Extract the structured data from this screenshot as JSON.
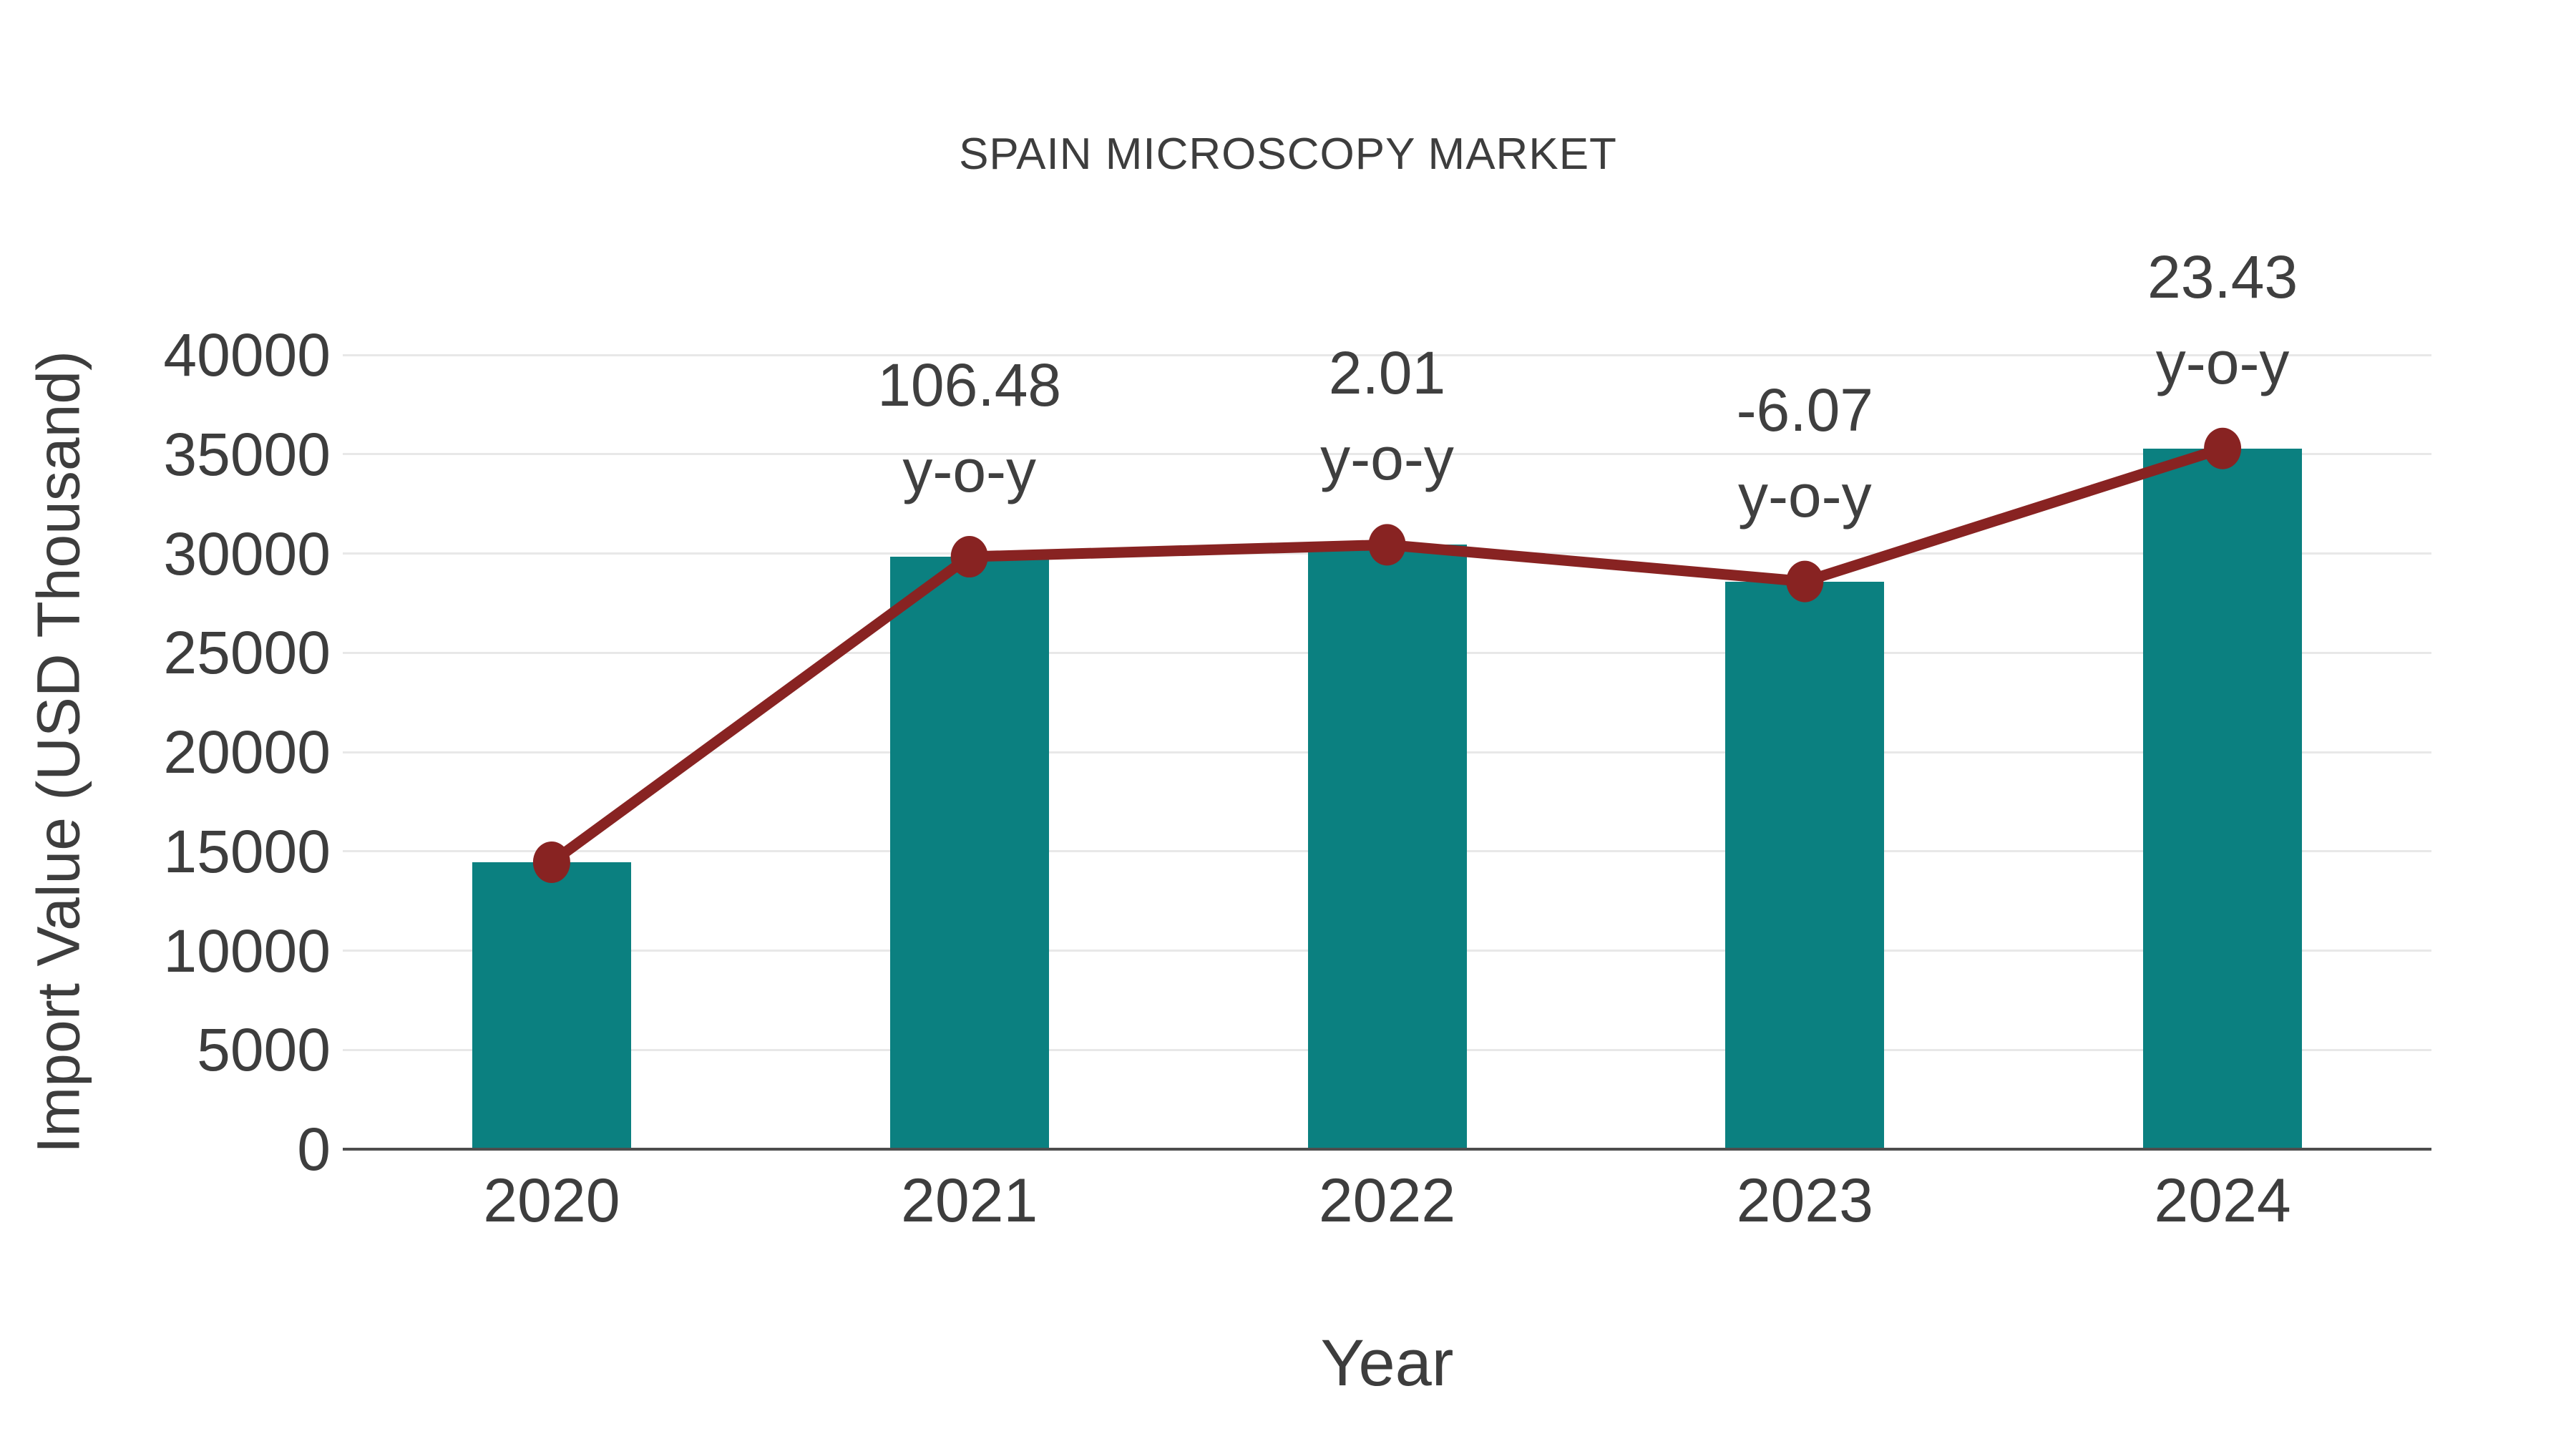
{
  "chart_data": {
    "type": "bar",
    "title": "SPAIN MICROSCOPY MARKET",
    "xlabel": "Year",
    "ylabel": "Import Value (USD Thousand)",
    "categories": [
      "2020",
      "2021",
      "2022",
      "2023",
      "2024"
    ],
    "series": [
      {
        "name": "import-value-bars",
        "type": "bar",
        "values": [
          14450,
          29837,
          30437,
          28590,
          35289
        ],
        "color": "#0b8080"
      },
      {
        "name": "import-value-trend-line",
        "type": "line",
        "values": [
          14450,
          29837,
          30437,
          28590,
          35289
        ],
        "color": "#882322"
      }
    ],
    "annotations": [
      {
        "category": "2021",
        "value": "106.48",
        "suffix": "y-o-y"
      },
      {
        "category": "2022",
        "value": "2.01",
        "suffix": "y-o-y"
      },
      {
        "category": "2023",
        "value": "-6.07",
        "suffix": "y-o-y"
      },
      {
        "category": "2024",
        "value": "23.43",
        "suffix": "y-o-y"
      }
    ],
    "ylim": [
      0,
      40000
    ],
    "yticks": [
      0,
      5000,
      10000,
      15000,
      20000,
      25000,
      30000,
      35000,
      40000
    ],
    "grid": "horizontal",
    "legend": "none",
    "colors": {
      "bar": "#0b8080",
      "line": "#882322",
      "marker": "#882322",
      "gridline": "#e8e8e8",
      "axis_line": "#4d4d4d",
      "text": "#3d3d3d"
    }
  }
}
